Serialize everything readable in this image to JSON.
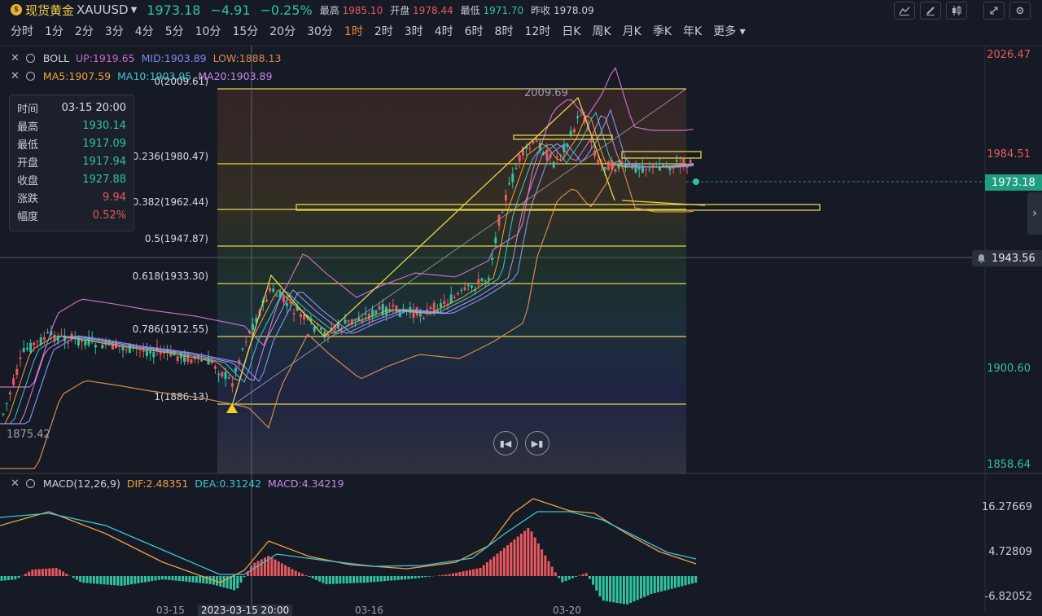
{
  "header": {
    "coin_glyph": "$",
    "name": "现货黄金",
    "code": "XAUUSD",
    "price": "1973.18",
    "change": "−4.91",
    "change_pct": "−0.25%",
    "high_label": "最高",
    "high": "1985.10",
    "open_label": "开盘",
    "open": "1978.44",
    "low_label": "最低",
    "low": "1971.70",
    "prev_label": "昨收",
    "prev": "1978.09"
  },
  "toolbar_icons": [
    "line-tool-icon",
    "pen-icon",
    "candle-icon",
    "expand-icon",
    "settings-icon"
  ],
  "timeframes": [
    "分时",
    "1分",
    "2分",
    "3分",
    "4分",
    "5分",
    "10分",
    "15分",
    "20分",
    "30分",
    "1时",
    "2时",
    "3时",
    "4时",
    "6时",
    "8时",
    "12时",
    "日K",
    "周K",
    "月K",
    "季K",
    "年K",
    "更多"
  ],
  "active_timeframe": "1时",
  "boll": {
    "title": "BOLL",
    "up": "UP:1919.65",
    "mid": "MID:1903.89",
    "low": "LOW:1888.13"
  },
  "ma": {
    "ma5": "MA5:1907.59",
    "ma10": "MA10:1903.95",
    "ma20": "MA20:1903.89"
  },
  "infobox": {
    "time_label": "时间",
    "time": "03-15 20:00",
    "high_label": "最高",
    "high": "1930.14",
    "low_label": "最低",
    "low": "1917.09",
    "open_label": "开盘",
    "open": "1917.94",
    "close_label": "收盘",
    "close": "1927.88",
    "change_label": "涨跌",
    "change": "9.94",
    "amp_label": "幅度",
    "amp": "0.52%"
  },
  "yaxis": {
    "p1": "2026.47",
    "p2": "1984.51",
    "p3": "1900.60",
    "p4": "1858.64",
    "current": "1973.18",
    "cross": "1943.56"
  },
  "fib": [
    {
      "label": "0(2009.61)"
    },
    {
      "label": "0.236(1980.47)"
    },
    {
      "label": "0.382(1962.44)"
    },
    {
      "label": "0.5(1947.87)"
    },
    {
      "label": "0.618(1933.30)"
    },
    {
      "label": "0.786(1912.55)"
    },
    {
      "label": "1(1886.13)"
    }
  ],
  "annotations": {
    "peak": "2009.69",
    "trough": "1875.42"
  },
  "macd": {
    "title": "MACD(12,26,9)",
    "dif": "DIF:2.48351",
    "dea": "DEA:0.31242",
    "macd": "MACD:4.34219",
    "y1": "16.27669",
    "y2": "4.72809",
    "y3": "-6.82052"
  },
  "dates": {
    "d1": "03-15",
    "cursor": "2023-03-15 20:00",
    "d2": "03-16",
    "d3": "03-20"
  },
  "colors": {
    "up": "#e8585d",
    "down": "#2ec4a0",
    "fib": "#e5d44a",
    "boll_up": "#c86cc8",
    "boll_mid": "#7b8cf0",
    "boll_low": "#d9884a",
    "active": "#f0883a"
  }
}
